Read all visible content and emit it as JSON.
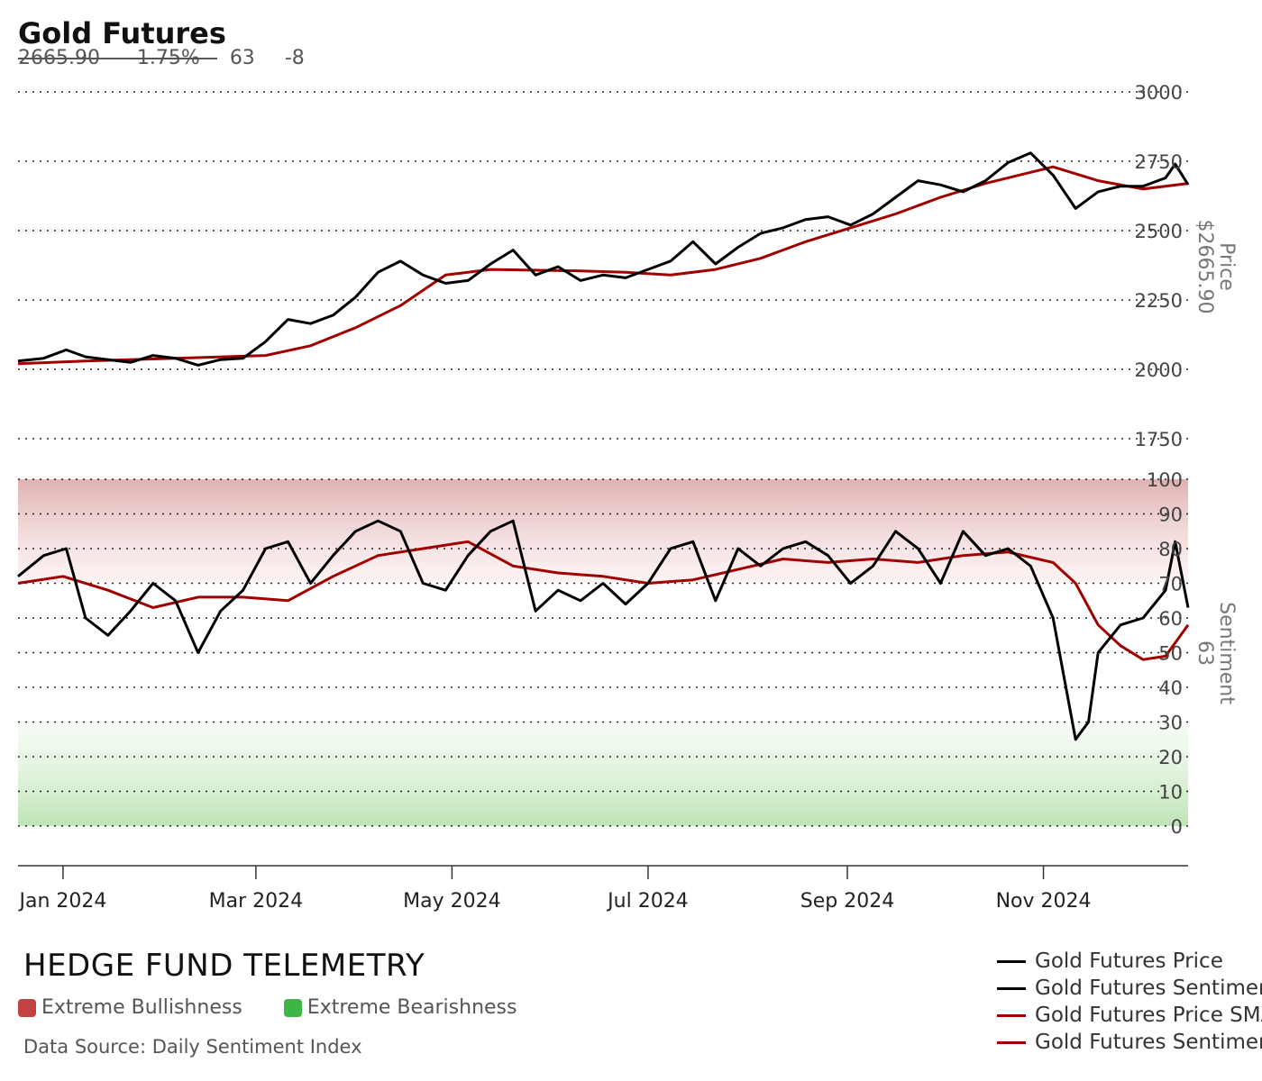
{
  "header": {
    "title": "Gold Futures",
    "price": "2665.90",
    "change_pct": "-1.75%",
    "sentiment": "63",
    "sentiment_change": "-8"
  },
  "footer": {
    "brand": "HEDGE FUND TELEMETRY",
    "bull_label": "Extreme Bullishness",
    "bear_label": "Extreme Bearishness",
    "source": "Data Source: Daily Sentiment Index"
  },
  "colors": {
    "price_line": "#000000",
    "sma_line": "#a00000",
    "bull_zone": "#d9a0a0",
    "bear_zone": "#b8e0b0",
    "bull_swatch": "#c24141",
    "bear_swatch": "#3fb548"
  },
  "chart_data": [
    {
      "type": "line",
      "panel": "price",
      "ylabel": "Price",
      "ylabel_value": "$2665.90",
      "ylim": [
        1750,
        3000
      ],
      "yticks": [
        1750,
        2000,
        2250,
        2500,
        2750,
        3000
      ],
      "grid": true,
      "x_ticks": [
        "Jan 2024",
        "Mar 2024",
        "May 2024",
        "Jul 2024",
        "Sep 2024",
        "Nov 2024"
      ],
      "series": [
        {
          "name": "Gold Futures Price",
          "color": "#000000",
          "points": [
            [
              "2023-12-18",
              2030
            ],
            [
              "2023-12-26",
              2040
            ],
            [
              "2024-01-02",
              2070
            ],
            [
              "2024-01-08",
              2045
            ],
            [
              "2024-01-15",
              2035
            ],
            [
              "2024-01-22",
              2025
            ],
            [
              "2024-01-29",
              2050
            ],
            [
              "2024-02-05",
              2040
            ],
            [
              "2024-02-12",
              2015
            ],
            [
              "2024-02-19",
              2035
            ],
            [
              "2024-02-26",
              2040
            ],
            [
              "2024-03-04",
              2100
            ],
            [
              "2024-03-11",
              2180
            ],
            [
              "2024-03-18",
              2165
            ],
            [
              "2024-03-25",
              2195
            ],
            [
              "2024-04-01",
              2260
            ],
            [
              "2024-04-08",
              2350
            ],
            [
              "2024-04-15",
              2390
            ],
            [
              "2024-04-22",
              2340
            ],
            [
              "2024-04-29",
              2310
            ],
            [
              "2024-05-06",
              2320
            ],
            [
              "2024-05-13",
              2380
            ],
            [
              "2024-05-20",
              2430
            ],
            [
              "2024-05-27",
              2340
            ],
            [
              "2024-06-03",
              2370
            ],
            [
              "2024-06-10",
              2320
            ],
            [
              "2024-06-17",
              2340
            ],
            [
              "2024-06-24",
              2330
            ],
            [
              "2024-07-01",
              2360
            ],
            [
              "2024-07-08",
              2390
            ],
            [
              "2024-07-15",
              2460
            ],
            [
              "2024-07-22",
              2380
            ],
            [
              "2024-07-29",
              2440
            ],
            [
              "2024-08-05",
              2490
            ],
            [
              "2024-08-12",
              2510
            ],
            [
              "2024-08-19",
              2540
            ],
            [
              "2024-08-26",
              2550
            ],
            [
              "2024-09-02",
              2520
            ],
            [
              "2024-09-09",
              2560
            ],
            [
              "2024-09-16",
              2620
            ],
            [
              "2024-09-23",
              2680
            ],
            [
              "2024-09-30",
              2665
            ],
            [
              "2024-10-07",
              2640
            ],
            [
              "2024-10-14",
              2680
            ],
            [
              "2024-10-21",
              2745
            ],
            [
              "2024-10-28",
              2780
            ],
            [
              "2024-11-04",
              2700
            ],
            [
              "2024-11-11",
              2580
            ],
            [
              "2024-11-18",
              2640
            ],
            [
              "2024-11-25",
              2660
            ],
            [
              "2024-12-02",
              2660
            ],
            [
              "2024-12-09",
              2690
            ],
            [
              "2024-12-12",
              2740
            ],
            [
              "2024-12-16",
              2665.9
            ]
          ]
        },
        {
          "name": "Gold Futures Price SMA",
          "color": "#a00000",
          "points": [
            [
              "2023-12-18",
              2020
            ],
            [
              "2024-01-08",
              2030
            ],
            [
              "2024-02-05",
              2040
            ],
            [
              "2024-03-04",
              2050
            ],
            [
              "2024-03-18",
              2085
            ],
            [
              "2024-04-01",
              2150
            ],
            [
              "2024-04-15",
              2230
            ],
            [
              "2024-04-29",
              2340
            ],
            [
              "2024-05-13",
              2360
            ],
            [
              "2024-06-10",
              2355
            ],
            [
              "2024-06-24",
              2350
            ],
            [
              "2024-07-08",
              2340
            ],
            [
              "2024-07-22",
              2360
            ],
            [
              "2024-08-05",
              2400
            ],
            [
              "2024-08-19",
              2460
            ],
            [
              "2024-09-02",
              2510
            ],
            [
              "2024-09-16",
              2560
            ],
            [
              "2024-09-30",
              2620
            ],
            [
              "2024-10-14",
              2670
            ],
            [
              "2024-10-28",
              2710
            ],
            [
              "2024-11-04",
              2730
            ],
            [
              "2024-11-18",
              2680
            ],
            [
              "2024-12-02",
              2650
            ],
            [
              "2024-12-16",
              2670
            ]
          ]
        }
      ]
    },
    {
      "type": "line",
      "panel": "sentiment",
      "ylabel": "Sentiment",
      "ylabel_value": "63",
      "ylim": [
        0,
        100
      ],
      "yticks": [
        0,
        10,
        20,
        30,
        40,
        50,
        60,
        70,
        80,
        90,
        100
      ],
      "bands": [
        {
          "zone": "Extreme Bullishness",
          "range": [
            70,
            100
          ]
        },
        {
          "zone": "Extreme Bearishness",
          "range": [
            0,
            30
          ]
        }
      ],
      "grid": true,
      "series": [
        {
          "name": "Gold Futures Sentiment",
          "color": "#000000",
          "points": [
            [
              "2023-12-18",
              72
            ],
            [
              "2023-12-26",
              78
            ],
            [
              "2024-01-02",
              80
            ],
            [
              "2024-01-08",
              60
            ],
            [
              "2024-01-15",
              55
            ],
            [
              "2024-01-22",
              62
            ],
            [
              "2024-01-29",
              70
            ],
            [
              "2024-02-05",
              65
            ],
            [
              "2024-02-12",
              50
            ],
            [
              "2024-02-19",
              62
            ],
            [
              "2024-02-26",
              68
            ],
            [
              "2024-03-04",
              80
            ],
            [
              "2024-03-11",
              82
            ],
            [
              "2024-03-18",
              70
            ],
            [
              "2024-03-25",
              78
            ],
            [
              "2024-04-01",
              85
            ],
            [
              "2024-04-08",
              88
            ],
            [
              "2024-04-15",
              85
            ],
            [
              "2024-04-22",
              70
            ],
            [
              "2024-04-29",
              68
            ],
            [
              "2024-05-06",
              78
            ],
            [
              "2024-05-13",
              85
            ],
            [
              "2024-05-20",
              88
            ],
            [
              "2024-05-27",
              62
            ],
            [
              "2024-06-03",
              68
            ],
            [
              "2024-06-10",
              65
            ],
            [
              "2024-06-17",
              70
            ],
            [
              "2024-06-24",
              64
            ],
            [
              "2024-07-01",
              70
            ],
            [
              "2024-07-08",
              80
            ],
            [
              "2024-07-15",
              82
            ],
            [
              "2024-07-22",
              65
            ],
            [
              "2024-07-29",
              80
            ],
            [
              "2024-08-05",
              75
            ],
            [
              "2024-08-12",
              80
            ],
            [
              "2024-08-19",
              82
            ],
            [
              "2024-08-26",
              78
            ],
            [
              "2024-09-02",
              70
            ],
            [
              "2024-09-09",
              75
            ],
            [
              "2024-09-16",
              85
            ],
            [
              "2024-09-23",
              80
            ],
            [
              "2024-09-30",
              70
            ],
            [
              "2024-10-07",
              85
            ],
            [
              "2024-10-14",
              78
            ],
            [
              "2024-10-21",
              80
            ],
            [
              "2024-10-28",
              75
            ],
            [
              "2024-11-04",
              60
            ],
            [
              "2024-11-11",
              25
            ],
            [
              "2024-11-15",
              30
            ],
            [
              "2024-11-18",
              50
            ],
            [
              "2024-11-25",
              58
            ],
            [
              "2024-12-02",
              60
            ],
            [
              "2024-12-09",
              68
            ],
            [
              "2024-12-12",
              82
            ],
            [
              "2024-12-16",
              63
            ]
          ]
        },
        {
          "name": "Gold Futures Sentiment SMA",
          "color": "#a00000",
          "points": [
            [
              "2023-12-18",
              70
            ],
            [
              "2024-01-01",
              72
            ],
            [
              "2024-01-15",
              68
            ],
            [
              "2024-01-29",
              63
            ],
            [
              "2024-02-12",
              66
            ],
            [
              "2024-02-26",
              66
            ],
            [
              "2024-03-11",
              65
            ],
            [
              "2024-03-25",
              72
            ],
            [
              "2024-04-08",
              78
            ],
            [
              "2024-04-22",
              80
            ],
            [
              "2024-05-06",
              82
            ],
            [
              "2024-05-20",
              75
            ],
            [
              "2024-06-03",
              73
            ],
            [
              "2024-06-17",
              72
            ],
            [
              "2024-07-01",
              70
            ],
            [
              "2024-07-15",
              71
            ],
            [
              "2024-07-29",
              74
            ],
            [
              "2024-08-12",
              77
            ],
            [
              "2024-08-26",
              76
            ],
            [
              "2024-09-09",
              77
            ],
            [
              "2024-09-23",
              76
            ],
            [
              "2024-10-07",
              78
            ],
            [
              "2024-10-21",
              79
            ],
            [
              "2024-11-04",
              76
            ],
            [
              "2024-11-11",
              70
            ],
            [
              "2024-11-18",
              58
            ],
            [
              "2024-11-25",
              52
            ],
            [
              "2024-12-02",
              48
            ],
            [
              "2024-12-09",
              49
            ],
            [
              "2024-12-16",
              58
            ]
          ]
        }
      ]
    }
  ],
  "legend": [
    {
      "label": "Gold Futures Price",
      "color": "#000000"
    },
    {
      "label": "Gold Futures Sentiment",
      "color": "#000000"
    },
    {
      "label": "Gold Futures Price SMA",
      "color": "#a00000"
    },
    {
      "label": "Gold Futures Sentiment SMA",
      "color": "#a00000"
    }
  ]
}
